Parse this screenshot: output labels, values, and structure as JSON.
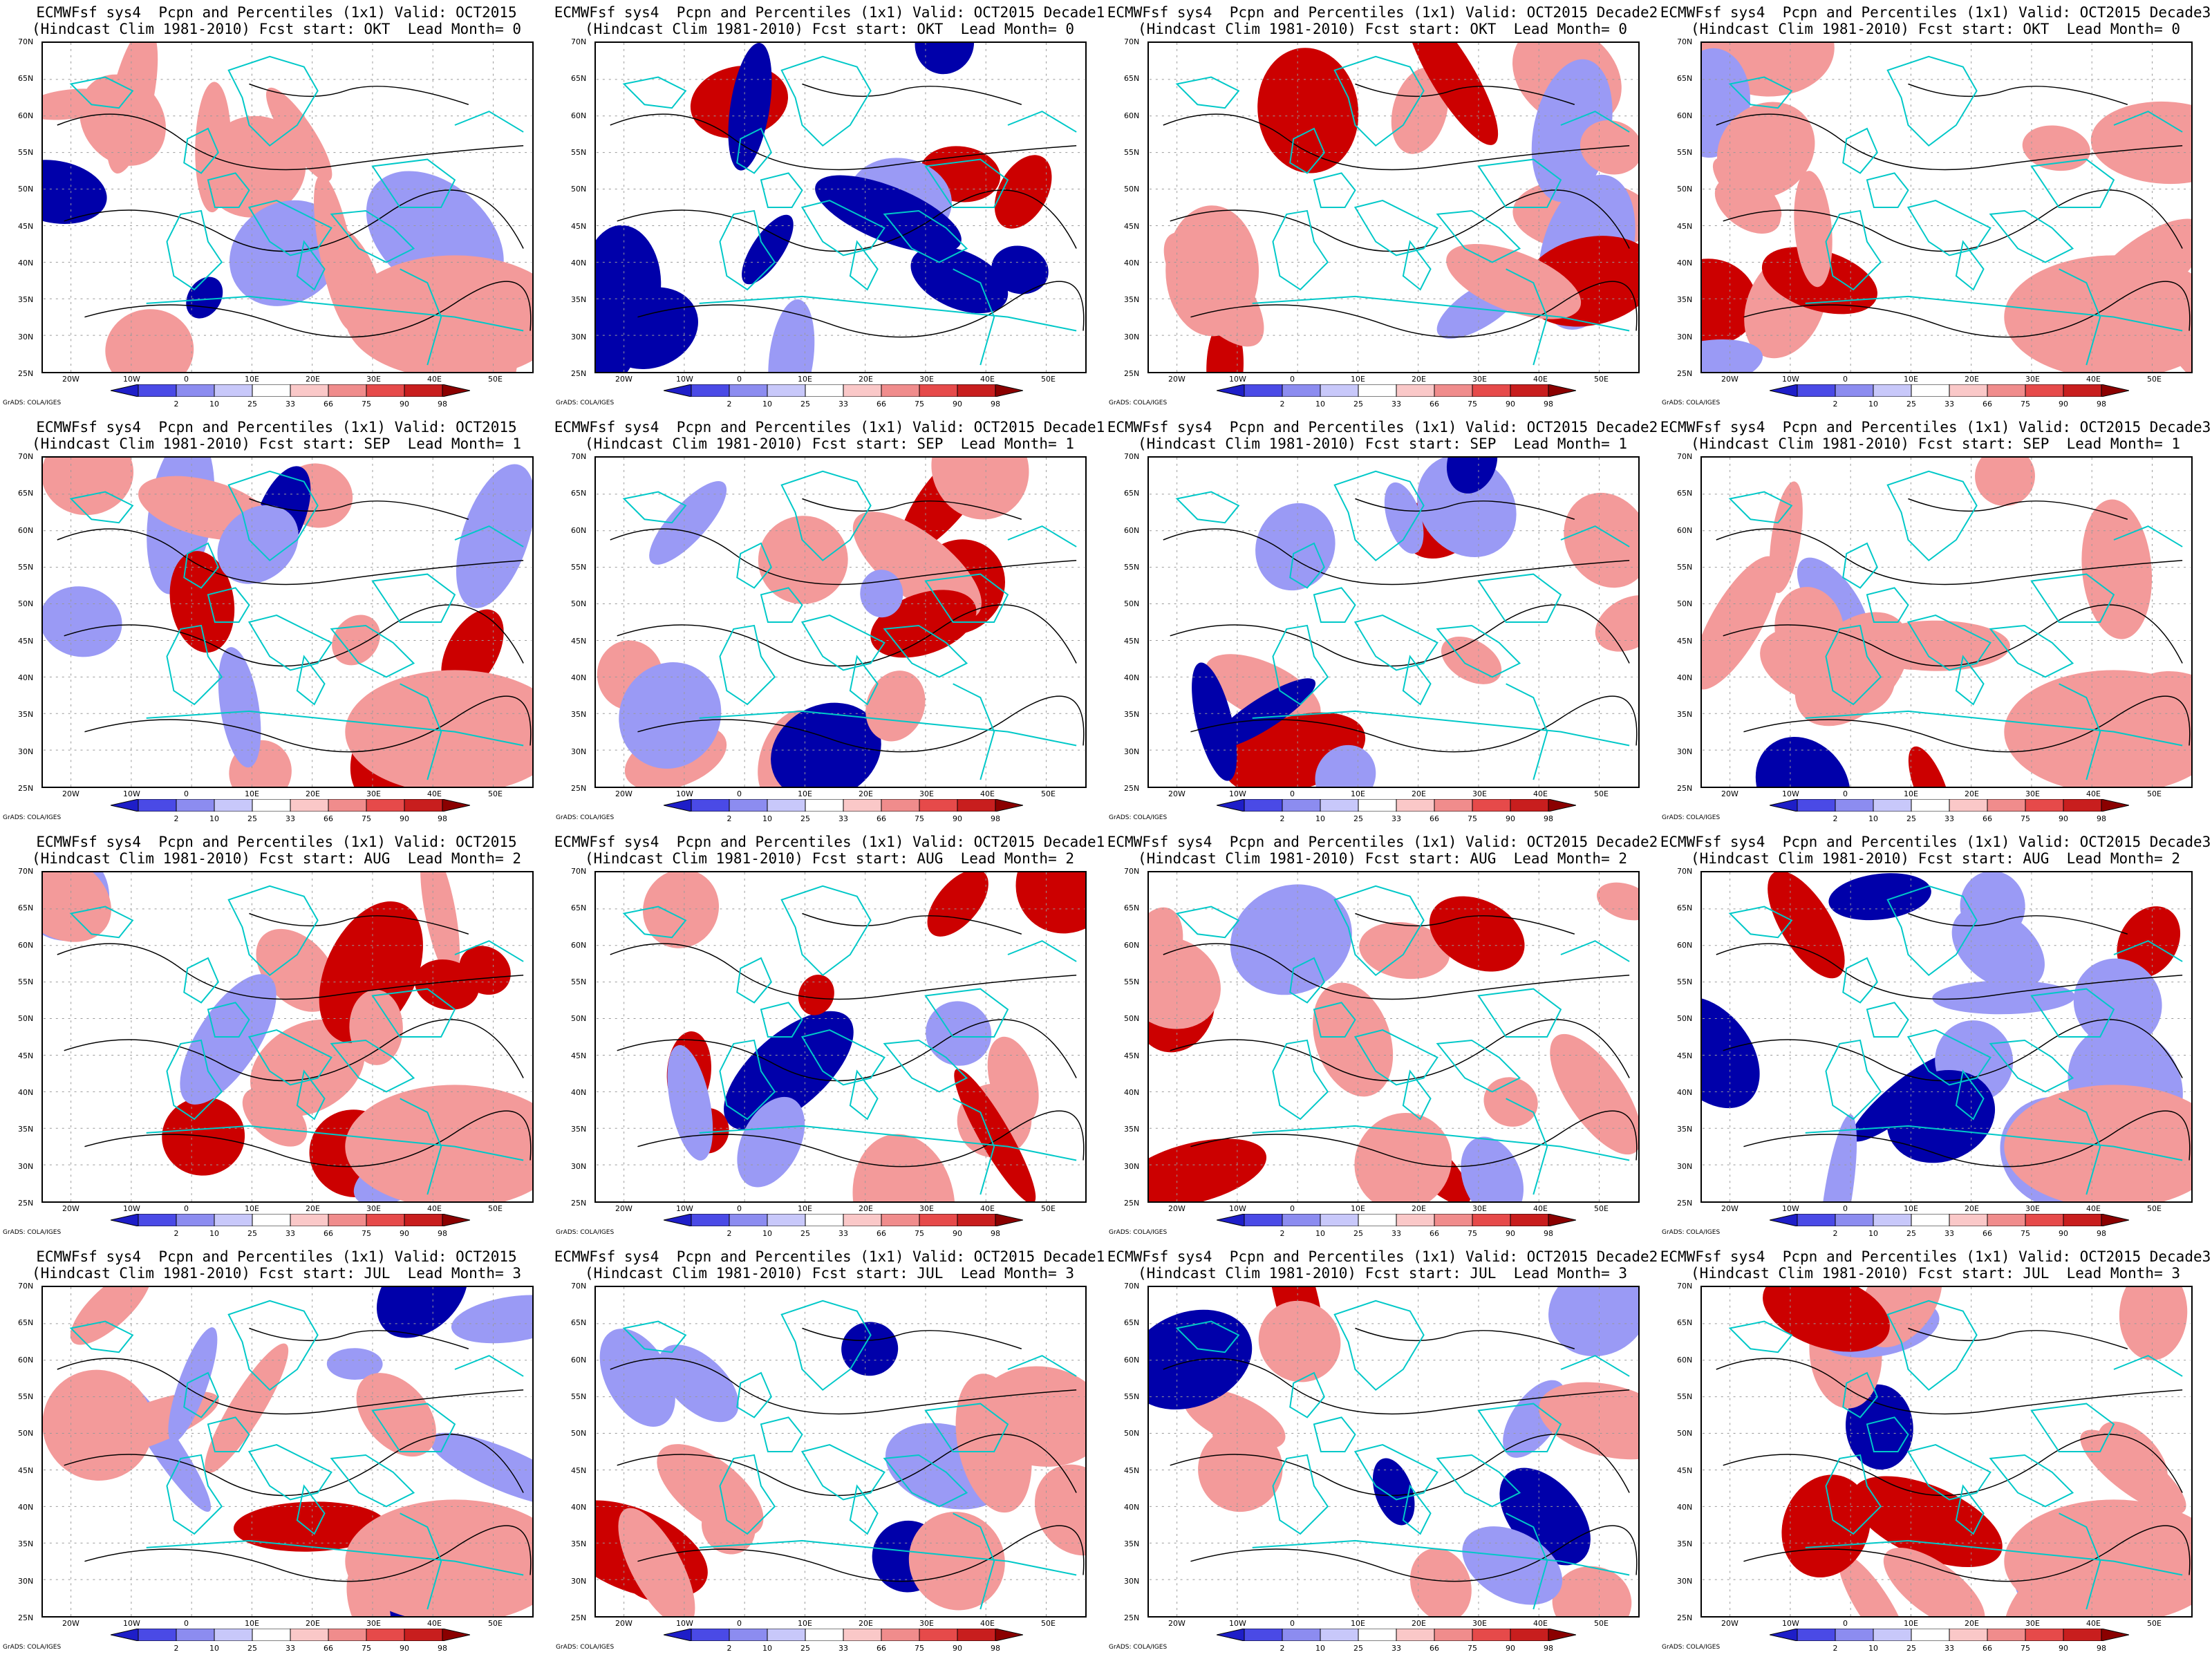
{
  "panel_common": {
    "title_line1_prefix": "ECMWFsf sys4  Pcpn and Percentiles (1x1) Valid: OCT2015",
    "title_line2_prefix": "(Hindcast Clim 1981-2010) Fcst start: ",
    "lead_prefix": "Lead Month= ",
    "credit": "GrADS: COLA/IGES"
  },
  "latitudes": [
    "70N",
    "65N",
    "60N",
    "55N",
    "50N",
    "45N",
    "40N",
    "35N",
    "30N",
    "25N"
  ],
  "longitudes": [
    "20W",
    "10W",
    "0",
    "10E",
    "20E",
    "30E",
    "40E",
    "50E"
  ],
  "colorbar": {
    "labels": [
      "2",
      "10",
      "25",
      "33",
      "66",
      "75",
      "90",
      "98"
    ],
    "colors": [
      "#1e1ec8",
      "#4a4ae6",
      "#8c8cf0",
      "#c8c8fa",
      "#ffffff",
      "#fac8c8",
      "#f08c8c",
      "#e64a4a",
      "#c81e1e",
      "#8b0000"
    ]
  },
  "colors": {
    "coast": "#00c8c8",
    "contour": "#000000",
    "dry_strong": "#0000aa",
    "dry": "#9a9af5",
    "wet": "#f39a9a",
    "wet_strong": "#cc0000"
  },
  "panels": [
    {
      "decade": "",
      "start": "OKT",
      "lead": "0"
    },
    {
      "decade": " Decade1",
      "start": "OKT",
      "lead": "0"
    },
    {
      "decade": " Decade2",
      "start": "OKT",
      "lead": "0"
    },
    {
      "decade": " Decade3",
      "start": "OKT",
      "lead": "0"
    },
    {
      "decade": "",
      "start": "SEP",
      "lead": "1"
    },
    {
      "decade": " Decade1",
      "start": "SEP",
      "lead": "1"
    },
    {
      "decade": " Decade2",
      "start": "SEP",
      "lead": "1"
    },
    {
      "decade": " Decade3",
      "start": "SEP",
      "lead": "1"
    },
    {
      "decade": "",
      "start": "AUG",
      "lead": "2"
    },
    {
      "decade": " Decade1",
      "start": "AUG",
      "lead": "2"
    },
    {
      "decade": " Decade2",
      "start": "AUG",
      "lead": "2"
    },
    {
      "decade": " Decade3",
      "start": "AUG",
      "lead": "2"
    },
    {
      "decade": "",
      "start": "JUL",
      "lead": "3"
    },
    {
      "decade": " Decade1",
      "start": "JUL",
      "lead": "3"
    },
    {
      "decade": " Decade2",
      "start": "JUL",
      "lead": "3"
    },
    {
      "decade": " Decade3",
      "start": "JUL",
      "lead": "3"
    }
  ]
}
